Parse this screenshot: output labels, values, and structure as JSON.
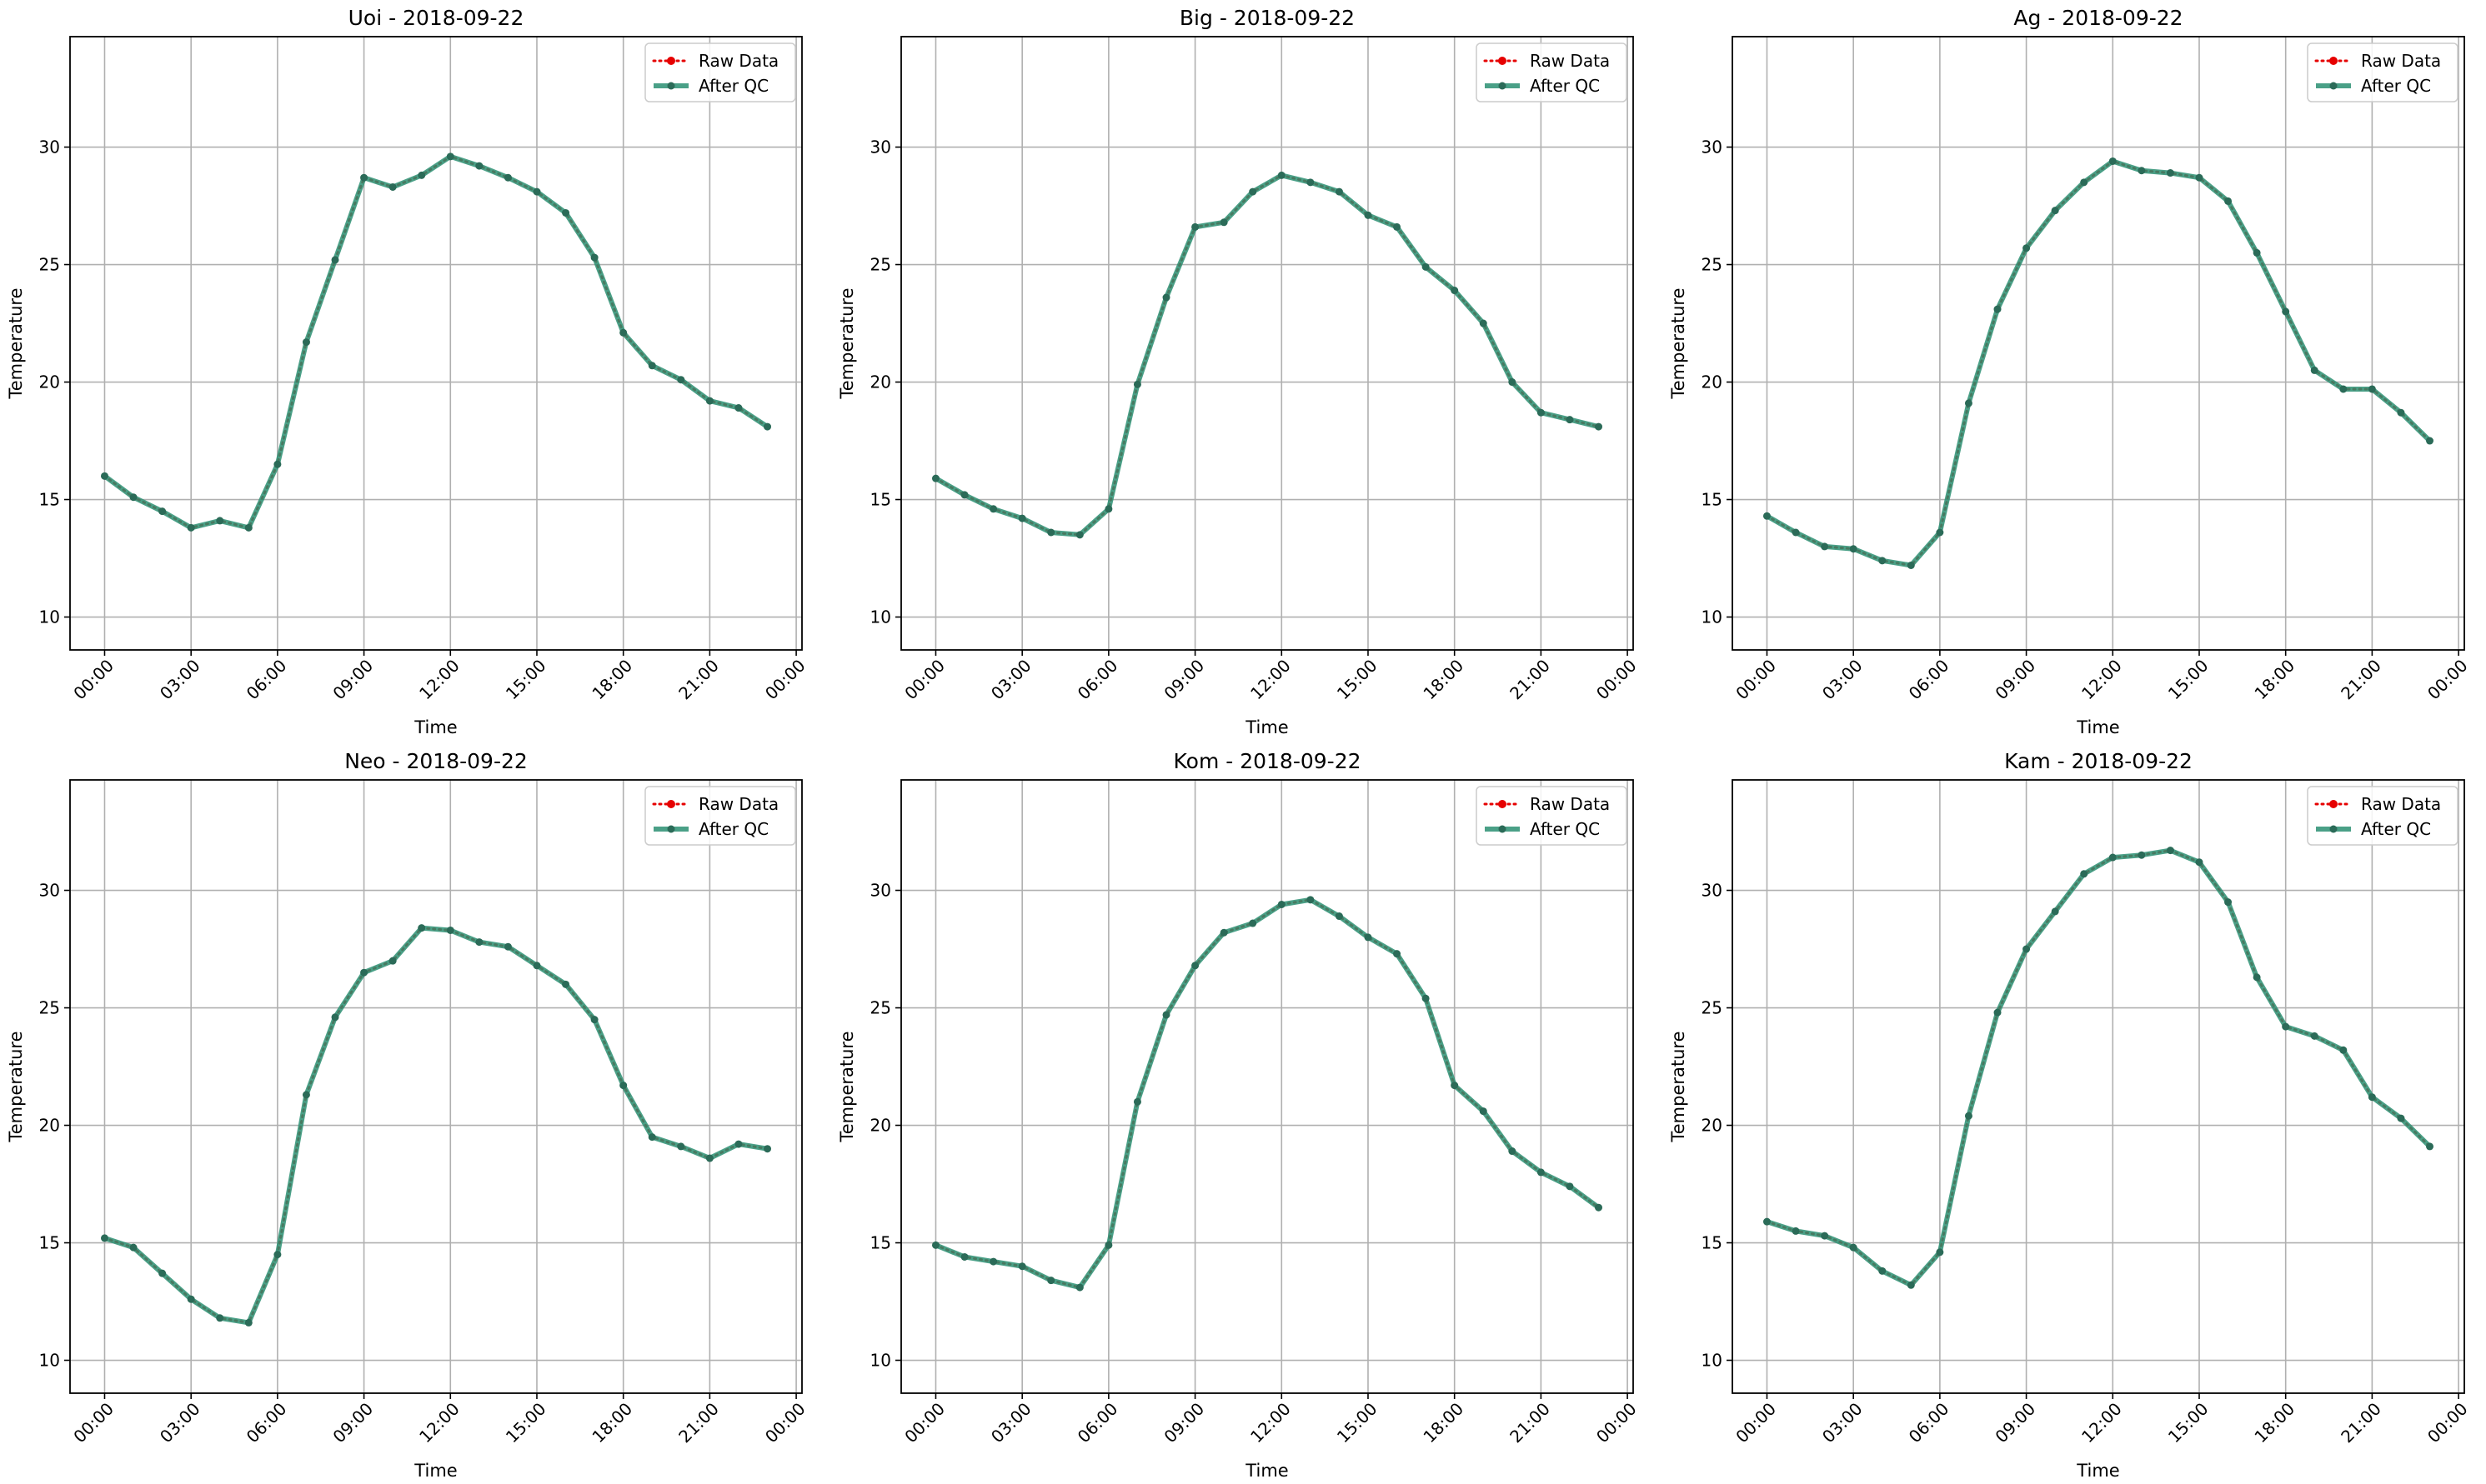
{
  "figure": {
    "colors": {
      "raw": "#e60000",
      "qc": "#2a8f72",
      "grid": "#b0b0b0",
      "axis": "#000000"
    }
  },
  "chart_data": [
    {
      "type": "line",
      "title": "Uoi - 2018-09-22",
      "xlabel": "Time",
      "ylabel": "Temperature",
      "x_ticks": [
        "00:00",
        "03:00",
        "06:00",
        "09:00",
        "12:00",
        "15:00",
        "18:00",
        "21:00",
        "00:00"
      ],
      "y_ticks": [
        10,
        15,
        20,
        25,
        30
      ],
      "xlim": [
        -1.2,
        24.2
      ],
      "ylim": [
        8.6,
        34.7
      ],
      "grid": true,
      "legend": "top-right",
      "x_hours": [
        0,
        1,
        2,
        3,
        4,
        5,
        6,
        7,
        8,
        9,
        10,
        11,
        12,
        13,
        14,
        15,
        16,
        17,
        18,
        19,
        20,
        21,
        22,
        23
      ],
      "series": [
        {
          "name": "Raw Data",
          "values": [
            16.0,
            15.1,
            14.5,
            13.8,
            14.1,
            13.8,
            16.5,
            21.7,
            25.2,
            28.7,
            28.3,
            28.8,
            29.6,
            29.2,
            28.7,
            28.1,
            27.2,
            25.3,
            22.1,
            20.7,
            20.1,
            19.2,
            18.9,
            18.1
          ]
        },
        {
          "name": "After QC",
          "values": [
            16.0,
            15.1,
            14.5,
            13.8,
            14.1,
            13.8,
            16.5,
            21.7,
            25.2,
            28.7,
            28.3,
            28.8,
            29.6,
            29.2,
            28.7,
            28.1,
            27.2,
            25.3,
            22.1,
            20.7,
            20.1,
            19.2,
            18.9,
            18.1
          ]
        }
      ]
    },
    {
      "type": "line",
      "title": "Big - 2018-09-22",
      "xlabel": "Time",
      "ylabel": "Temperature",
      "x_ticks": [
        "00:00",
        "03:00",
        "06:00",
        "09:00",
        "12:00",
        "15:00",
        "18:00",
        "21:00",
        "00:00"
      ],
      "y_ticks": [
        10,
        15,
        20,
        25,
        30
      ],
      "xlim": [
        -1.2,
        24.2
      ],
      "ylim": [
        8.6,
        34.7
      ],
      "grid": true,
      "legend": "top-right",
      "x_hours": [
        0,
        1,
        2,
        3,
        4,
        5,
        6,
        7,
        8,
        9,
        10,
        11,
        12,
        13,
        14,
        15,
        16,
        17,
        18,
        19,
        20,
        21,
        22,
        23
      ],
      "series": [
        {
          "name": "Raw Data",
          "values": [
            15.9,
            15.2,
            14.6,
            14.2,
            13.6,
            13.5,
            14.6,
            19.9,
            23.6,
            26.6,
            26.8,
            28.1,
            28.8,
            28.5,
            28.1,
            27.1,
            26.6,
            24.9,
            23.9,
            22.5,
            20.0,
            18.7,
            18.4,
            18.1
          ]
        },
        {
          "name": "After QC",
          "values": [
            15.9,
            15.2,
            14.6,
            14.2,
            13.6,
            13.5,
            14.6,
            19.9,
            23.6,
            26.6,
            26.8,
            28.1,
            28.8,
            28.5,
            28.1,
            27.1,
            26.6,
            24.9,
            23.9,
            22.5,
            20.0,
            18.7,
            18.4,
            18.1
          ]
        }
      ]
    },
    {
      "type": "line",
      "title": "Ag - 2018-09-22",
      "xlabel": "Time",
      "ylabel": "Temperature",
      "x_ticks": [
        "00:00",
        "03:00",
        "06:00",
        "09:00",
        "12:00",
        "15:00",
        "18:00",
        "21:00",
        "00:00"
      ],
      "y_ticks": [
        10,
        15,
        20,
        25,
        30
      ],
      "xlim": [
        -1.2,
        24.2
      ],
      "ylim": [
        8.6,
        34.7
      ],
      "grid": true,
      "legend": "top-right",
      "x_hours": [
        0,
        1,
        2,
        3,
        4,
        5,
        6,
        7,
        8,
        9,
        10,
        11,
        12,
        13,
        14,
        15,
        16,
        17,
        18,
        19,
        20,
        21,
        22,
        23
      ],
      "series": [
        {
          "name": "Raw Data",
          "values": [
            14.3,
            13.6,
            13.0,
            12.9,
            12.4,
            12.2,
            13.6,
            19.1,
            23.1,
            25.7,
            27.3,
            28.5,
            29.4,
            29.0,
            28.9,
            28.7,
            27.7,
            25.5,
            23.0,
            20.5,
            19.7,
            19.7,
            18.7,
            17.5
          ]
        },
        {
          "name": "After QC",
          "values": [
            14.3,
            13.6,
            13.0,
            12.9,
            12.4,
            12.2,
            13.6,
            19.1,
            23.1,
            25.7,
            27.3,
            28.5,
            29.4,
            29.0,
            28.9,
            28.7,
            27.7,
            25.5,
            23.0,
            20.5,
            19.7,
            19.7,
            18.7,
            17.5
          ]
        }
      ]
    },
    {
      "type": "line",
      "title": "Neo - 2018-09-22",
      "xlabel": "Time",
      "ylabel": "Temperature",
      "x_ticks": [
        "00:00",
        "03:00",
        "06:00",
        "09:00",
        "12:00",
        "15:00",
        "18:00",
        "21:00",
        "00:00"
      ],
      "y_ticks": [
        10,
        15,
        20,
        25,
        30
      ],
      "xlim": [
        -1.2,
        24.2
      ],
      "ylim": [
        8.6,
        34.7
      ],
      "grid": true,
      "legend": "top-right",
      "x_hours": [
        0,
        1,
        2,
        3,
        4,
        5,
        6,
        7,
        8,
        9,
        10,
        11,
        12,
        13,
        14,
        15,
        16,
        17,
        18,
        19,
        20,
        21,
        22,
        23
      ],
      "series": [
        {
          "name": "Raw Data",
          "values": [
            15.2,
            14.8,
            13.7,
            12.6,
            11.8,
            11.6,
            14.5,
            21.3,
            24.6,
            26.5,
            27.0,
            28.4,
            28.3,
            27.8,
            27.6,
            26.8,
            26.0,
            24.5,
            21.7,
            19.5,
            19.1,
            18.6,
            19.2,
            19.0
          ]
        },
        {
          "name": "After QC",
          "values": [
            15.2,
            14.8,
            13.7,
            12.6,
            11.8,
            11.6,
            14.5,
            21.3,
            24.6,
            26.5,
            27.0,
            28.4,
            28.3,
            27.8,
            27.6,
            26.8,
            26.0,
            24.5,
            21.7,
            19.5,
            19.1,
            18.6,
            19.2,
            19.0
          ]
        }
      ]
    },
    {
      "type": "line",
      "title": "Kom - 2018-09-22",
      "xlabel": "Time",
      "ylabel": "Temperature",
      "x_ticks": [
        "00:00",
        "03:00",
        "06:00",
        "09:00",
        "12:00",
        "15:00",
        "18:00",
        "21:00",
        "00:00"
      ],
      "y_ticks": [
        10,
        15,
        20,
        25,
        30
      ],
      "xlim": [
        -1.2,
        24.2
      ],
      "ylim": [
        8.6,
        34.7
      ],
      "grid": true,
      "legend": "top-right",
      "x_hours": [
        0,
        1,
        2,
        3,
        4,
        5,
        6,
        7,
        8,
        9,
        10,
        11,
        12,
        13,
        14,
        15,
        16,
        17,
        18,
        19,
        20,
        21,
        22,
        23
      ],
      "series": [
        {
          "name": "Raw Data",
          "values": [
            14.9,
            14.4,
            14.2,
            14.0,
            13.4,
            13.1,
            14.9,
            21.0,
            24.7,
            26.8,
            28.2,
            28.6,
            29.4,
            29.6,
            28.9,
            28.0,
            27.3,
            25.4,
            21.7,
            20.6,
            18.9,
            18.0,
            17.4,
            16.5
          ]
        },
        {
          "name": "After QC",
          "values": [
            14.9,
            14.4,
            14.2,
            14.0,
            13.4,
            13.1,
            14.9,
            21.0,
            24.7,
            26.8,
            28.2,
            28.6,
            29.4,
            29.6,
            28.9,
            28.0,
            27.3,
            25.4,
            21.7,
            20.6,
            18.9,
            18.0,
            17.4,
            16.5
          ]
        }
      ]
    },
    {
      "type": "line",
      "title": "Kam - 2018-09-22",
      "xlabel": "Time",
      "ylabel": "Temperature",
      "x_ticks": [
        "00:00",
        "03:00",
        "06:00",
        "09:00",
        "12:00",
        "15:00",
        "18:00",
        "21:00",
        "00:00"
      ],
      "y_ticks": [
        10,
        15,
        20,
        25,
        30
      ],
      "xlim": [
        -1.2,
        24.2
      ],
      "ylim": [
        8.6,
        34.7
      ],
      "grid": true,
      "legend": "top-right",
      "x_hours": [
        0,
        1,
        2,
        3,
        4,
        5,
        6,
        7,
        8,
        9,
        10,
        11,
        12,
        13,
        14,
        15,
        16,
        17,
        18,
        19,
        20,
        21,
        22,
        23
      ],
      "series": [
        {
          "name": "Raw Data",
          "values": [
            15.9,
            15.5,
            15.3,
            14.8,
            13.8,
            13.2,
            14.6,
            20.4,
            24.8,
            27.5,
            29.1,
            30.7,
            31.4,
            31.5,
            31.7,
            31.2,
            29.5,
            26.3,
            24.2,
            23.8,
            23.2,
            21.2,
            20.3,
            19.1
          ]
        },
        {
          "name": "After QC",
          "values": [
            15.9,
            15.5,
            15.3,
            14.8,
            13.8,
            13.2,
            14.6,
            20.4,
            24.8,
            27.5,
            29.1,
            30.7,
            31.4,
            31.5,
            31.7,
            31.2,
            29.5,
            26.3,
            24.2,
            23.8,
            23.2,
            21.2,
            20.3,
            19.1
          ]
        }
      ]
    }
  ]
}
